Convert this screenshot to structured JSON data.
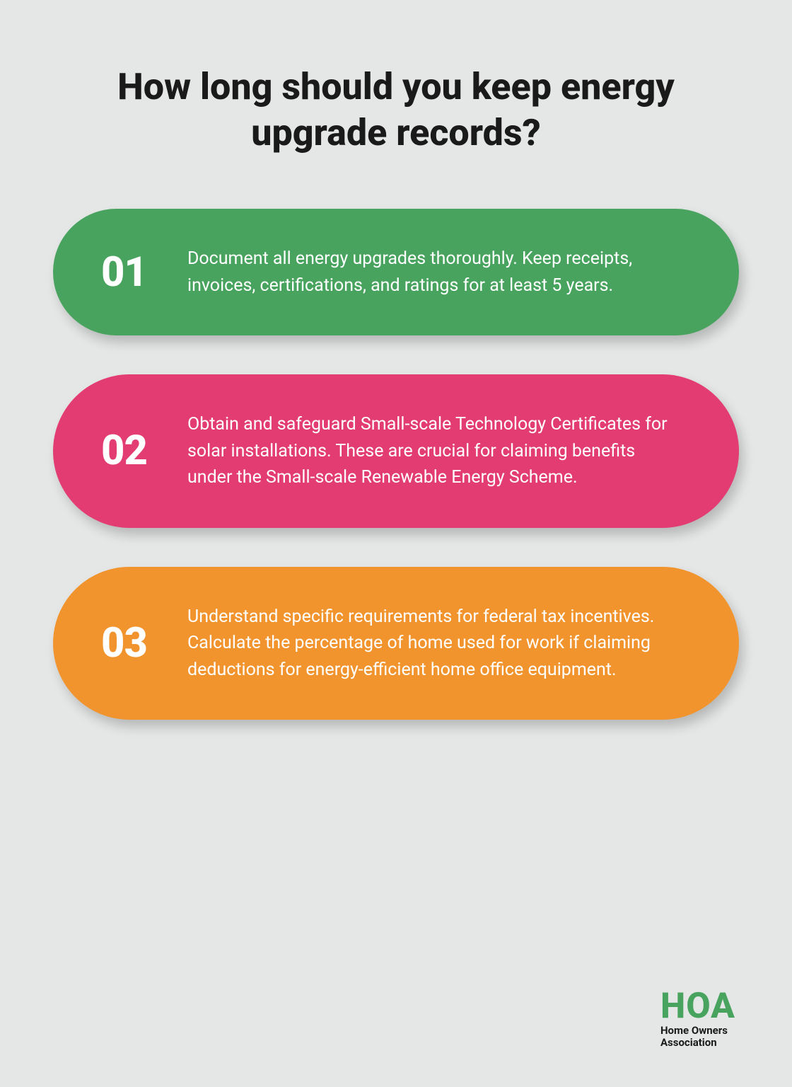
{
  "title": "How long should you keep energy upgrade records?",
  "background_color": "#e5e7e7",
  "title_color": "#1a1a1a",
  "title_fontsize": 52,
  "pills": [
    {
      "number": "01",
      "text": "Document all energy upgrades thoroughly. Keep receipts, invoices, certifications, and ratings for at least 5 years.",
      "bg_color": "#48a35e"
    },
    {
      "number": "02",
      "text": "Obtain and safeguard Small-scale Technology Certificates for solar installations. These are crucial for claiming benefits under the Small-scale Renewable Energy Scheme.",
      "bg_color": "#e33c73"
    },
    {
      "number": "03",
      "text": "Understand specific requirements for federal tax incentives. Calculate the percentage of home used for work if claiming deductions for energy-efficient home office equipment.",
      "bg_color": "#f2942e"
    }
  ],
  "pill_number_fontsize": 58,
  "pill_text_fontsize": 25,
  "pill_text_color": "#ffffff",
  "pill_border_radius": 130,
  "logo": {
    "main": "HOA",
    "sub1": "Home Owners",
    "sub2": "Association",
    "main_color": "#48a35e",
    "sub_color": "#1a1a1a"
  }
}
